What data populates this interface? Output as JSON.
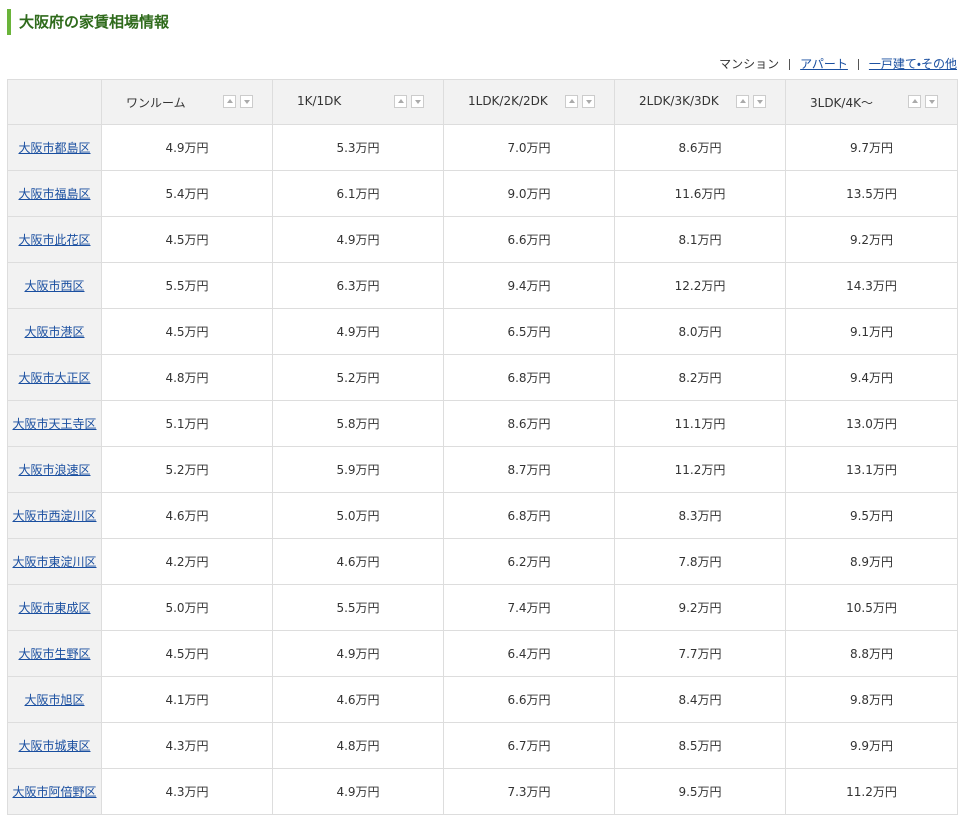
{
  "header": {
    "title": "大阪府の家賃相場情報"
  },
  "tabs": [
    "マンション",
    "アパート",
    "一戸建て・その他"
  ],
  "table": {
    "columns": [
      "ワンルーム",
      "1K/1DK",
      "1LDK/2K/2DK",
      "2LDK/3K/3DK",
      "3LDK/4K〜"
    ],
    "rows": [
      {
        "area": "大阪市都島区",
        "cells": [
          "4.9万円",
          "5.3万円",
          "7.0万円",
          "8.6万円",
          "9.7万円"
        ]
      },
      {
        "area": "大阪市福島区",
        "cells": [
          "5.4万円",
          "6.1万円",
          "9.0万円",
          "11.6万円",
          "13.5万円"
        ]
      },
      {
        "area": "大阪市此花区",
        "cells": [
          "4.5万円",
          "4.9万円",
          "6.6万円",
          "8.1万円",
          "9.2万円"
        ]
      },
      {
        "area": "大阪市西区",
        "cells": [
          "5.5万円",
          "6.3万円",
          "9.4万円",
          "12.2万円",
          "14.3万円"
        ]
      },
      {
        "area": "大阪市港区",
        "cells": [
          "4.5万円",
          "4.9万円",
          "6.5万円",
          "8.0万円",
          "9.1万円"
        ]
      },
      {
        "area": "大阪市大正区",
        "cells": [
          "4.8万円",
          "5.2万円",
          "6.8万円",
          "8.2万円",
          "9.4万円"
        ]
      },
      {
        "area": "大阪市天王寺区",
        "cells": [
          "5.1万円",
          "5.8万円",
          "8.6万円",
          "11.1万円",
          "13.0万円"
        ]
      },
      {
        "area": "大阪市浪速区",
        "cells": [
          "5.2万円",
          "5.9万円",
          "8.7万円",
          "11.2万円",
          "13.1万円"
        ]
      },
      {
        "area": "大阪市西淀川区",
        "cells": [
          "4.6万円",
          "5.0万円",
          "6.8万円",
          "8.3万円",
          "9.5万円"
        ]
      },
      {
        "area": "大阪市東淀川区",
        "cells": [
          "4.2万円",
          "4.6万円",
          "6.2万円",
          "7.8万円",
          "8.9万円"
        ]
      },
      {
        "area": "大阪市東成区",
        "cells": [
          "5.0万円",
          "5.5万円",
          "7.4万円",
          "9.2万円",
          "10.5万円"
        ]
      },
      {
        "area": "大阪市生野区",
        "cells": [
          "4.5万円",
          "4.9万円",
          "6.4万円",
          "7.7万円",
          "8.8万円"
        ]
      },
      {
        "area": "大阪市旭区",
        "cells": [
          "4.1万円",
          "4.6万円",
          "6.6万円",
          "8.4万円",
          "9.8万円"
        ]
      },
      {
        "area": "大阪市城東区",
        "cells": [
          "4.3万円",
          "4.8万円",
          "6.7万円",
          "8.5万円",
          "9.9万円"
        ]
      },
      {
        "area": "大阪市阿倍野区",
        "cells": [
          "4.3万円",
          "4.9万円",
          "7.3万円",
          "9.5万円",
          "11.2万円"
        ]
      }
    ]
  }
}
